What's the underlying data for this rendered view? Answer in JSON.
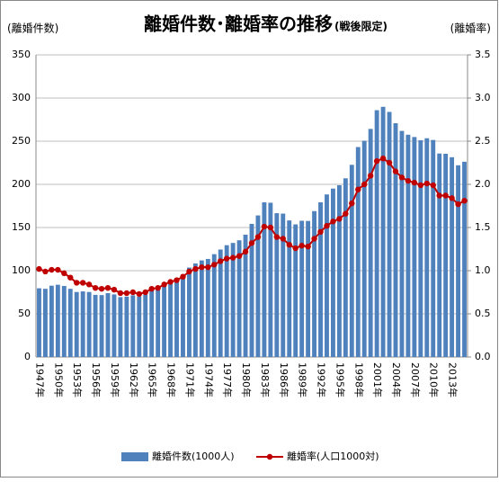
{
  "chart_data": {
    "type": "bar",
    "title": "離婚件数･離婚率の推移",
    "subtitle": "(戦後限定)",
    "y_label": "(離婚件数)",
    "y2_label": "(離婚率)",
    "categories": [
      "1947年",
      null,
      null,
      "1950年",
      null,
      null,
      "1953年",
      null,
      null,
      "1956年",
      null,
      null,
      "1959年",
      null,
      null,
      "1962年",
      null,
      null,
      "1965年",
      null,
      null,
      "1968年",
      null,
      null,
      "1971年",
      null,
      null,
      "1974年",
      null,
      null,
      "1977年",
      null,
      null,
      "1980年",
      null,
      null,
      "1983年",
      null,
      null,
      "1986年",
      null,
      null,
      "1989年",
      null,
      null,
      "1992年",
      null,
      null,
      "1995年",
      null,
      null,
      "1998年",
      null,
      null,
      "2001年",
      null,
      null,
      "2004年",
      null,
      null,
      "2007年",
      null,
      null,
      "2010年",
      null,
      null,
      "2013年",
      null,
      null
    ],
    "series": [
      {
        "name": "離婚件数(1000人)",
        "color": "#4f81bd",
        "values": [
          79.6,
          79.0,
          82.6,
          83.7,
          82.3,
          79.0,
          75.3,
          76.0,
          75.3,
          72.0,
          71.7,
          74.0,
          72.5,
          69.4,
          70.0,
          71.4,
          70.0,
          72.3,
          77.2,
          79.4,
          83.5,
          87.3,
          91.3,
          95.9,
          103.6,
          108.4,
          111.9,
          113.6,
          119.1,
          124.5,
          129.5,
          132.1,
          135.2,
          141.7,
          154.2,
          164.0,
          179.2,
          178.7,
          166.6,
          166.1,
          158.2,
          153.6,
          157.8,
          157.6,
          169.0,
          179.2,
          188.3,
          195.1,
          199.0,
          207.0,
          222.6,
          243.2,
          250.5,
          264.2,
          285.9,
          289.8,
          283.9,
          270.8,
          261.9,
          257.5,
          254.8,
          251.1,
          253.4,
          251.4,
          235.7,
          235.4,
          231.4,
          222.1,
          226.2
        ]
      },
      {
        "name": "離婚率(人口1000対)",
        "color": "#c00000",
        "type": "line",
        "axis": "y2",
        "values": [
          1.02,
          0.99,
          1.01,
          1.01,
          0.97,
          0.92,
          0.86,
          0.86,
          0.84,
          0.8,
          0.79,
          0.8,
          0.78,
          0.74,
          0.74,
          0.75,
          0.73,
          0.75,
          0.79,
          0.8,
          0.84,
          0.87,
          0.89,
          0.93,
          0.99,
          1.02,
          1.04,
          1.04,
          1.07,
          1.11,
          1.14,
          1.15,
          1.17,
          1.22,
          1.32,
          1.39,
          1.51,
          1.5,
          1.39,
          1.37,
          1.3,
          1.26,
          1.29,
          1.28,
          1.37,
          1.45,
          1.52,
          1.57,
          1.6,
          1.66,
          1.78,
          1.94,
          2.0,
          2.1,
          2.27,
          2.3,
          2.25,
          2.15,
          2.08,
          2.04,
          2.02,
          1.99,
          2.01,
          1.99,
          1.87,
          1.87,
          1.84,
          1.77,
          1.81
        ]
      }
    ],
    "ylim": [
      0,
      350
    ],
    "yticks": [
      0,
      50,
      100,
      150,
      200,
      250,
      300,
      350
    ],
    "y2lim": [
      0,
      3.5
    ],
    "y2ticks": [
      {
        "value": 0,
        "label": "0.0"
      },
      {
        "value": 0.5,
        "label": "0.5"
      },
      {
        "value": 1,
        "label": "1.0"
      },
      {
        "value": 1.5,
        "label": "1.5"
      },
      {
        "value": 2,
        "label": "2.0"
      },
      {
        "value": 2.5,
        "label": "2.5"
      },
      {
        "value": 3,
        "label": "3.0"
      },
      {
        "value": 3.5,
        "label": "3.5"
      }
    ],
    "grid": true
  }
}
